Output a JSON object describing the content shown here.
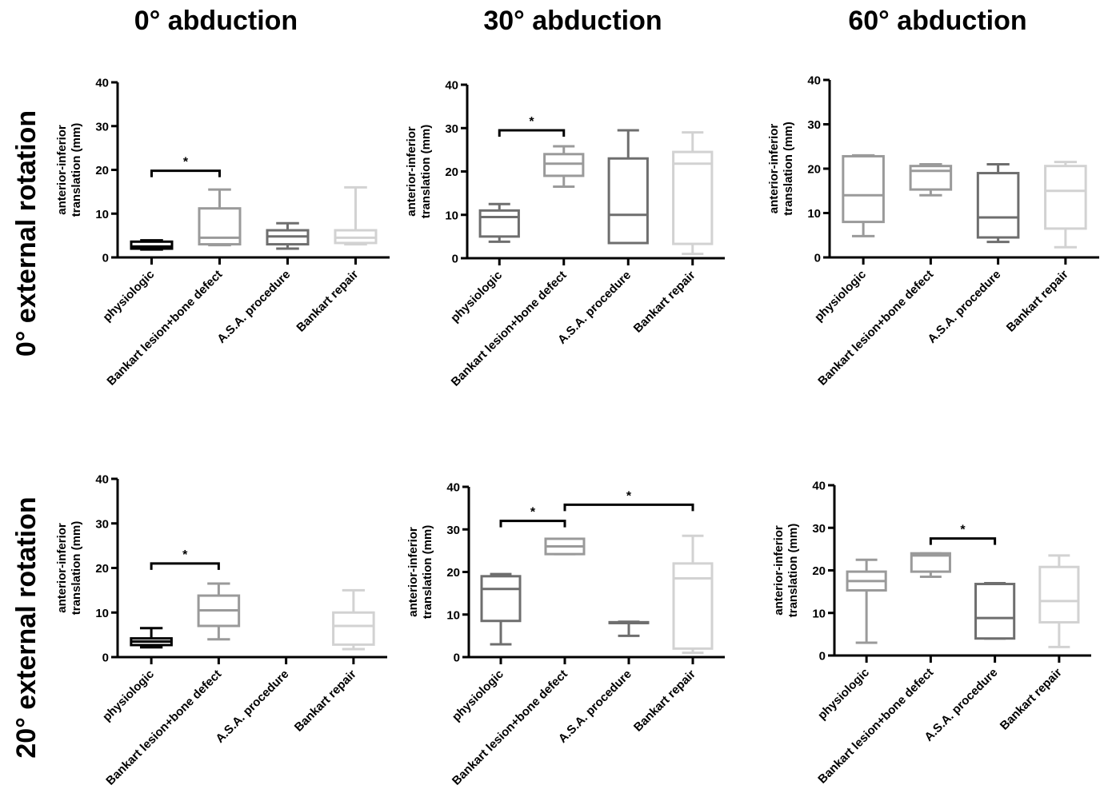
{
  "column_titles": [
    "0° abduction",
    "30° abduction",
    "60° abduction"
  ],
  "row_titles": [
    "0° external rotation",
    "20° external rotation"
  ],
  "colors": {
    "physiologic": "#000000",
    "bankart_bone": "#9a9a9a",
    "asa": "#6e6e6e",
    "bankart_repair": "#d2d2d2"
  },
  "chart_data": [
    {
      "type": "box",
      "row": 0,
      "col": 0,
      "title": "0° abduction",
      "ylabel": "anterior-inferior translation (mm)",
      "ylim": [
        0,
        40
      ],
      "yticks": [
        0,
        10,
        20,
        30,
        40
      ],
      "categories": [
        "physiologic",
        "Bankart lesion+bone defect",
        "A.S.A. procedure",
        "Bankart repair"
      ],
      "boxes": [
        {
          "min": 1.8,
          "q1": 2.0,
          "median": 2.5,
          "q3": 3.6,
          "max": 3.9,
          "color": "#000000"
        },
        {
          "min": 2.8,
          "q1": 3.0,
          "median": 4.5,
          "q3": 11.2,
          "max": 15.5,
          "color": "#9a9a9a"
        },
        {
          "min": 2.0,
          "q1": 3.0,
          "median": 4.8,
          "q3": 6.2,
          "max": 7.8,
          "color": "#6e6e6e"
        },
        {
          "min": 3.0,
          "q1": 3.3,
          "median": 4.5,
          "q3": 6.2,
          "max": 16.0,
          "color": "#d2d2d2"
        }
      ],
      "significance": [
        {
          "from": 0,
          "to": 1,
          "y": 19.8,
          "label": "*"
        }
      ]
    },
    {
      "type": "box",
      "row": 0,
      "col": 1,
      "title": "30° abduction",
      "ylabel": "anterior-inferior translation (mm)",
      "ylim": [
        0,
        40
      ],
      "yticks": [
        0,
        10,
        20,
        30,
        40
      ],
      "categories": [
        "physiologic",
        "Bankart lesion+bone defect",
        "A.S.A. procedure",
        "Bankart repair"
      ],
      "boxes": [
        {
          "min": 3.8,
          "q1": 5.0,
          "median": 9.5,
          "q3": 11.0,
          "max": 12.5,
          "color": "#6e6e6e"
        },
        {
          "min": 16.5,
          "q1": 19.0,
          "median": 21.8,
          "q3": 24.0,
          "max": 25.8,
          "color": "#9a9a9a"
        },
        {
          "min": 3.5,
          "q1": 3.5,
          "median": 10.0,
          "q3": 23.0,
          "max": 29.5,
          "color": "#6e6e6e"
        },
        {
          "min": 1.0,
          "q1": 3.3,
          "median": 21.8,
          "q3": 24.5,
          "max": 29.0,
          "color": "#d2d2d2"
        }
      ],
      "significance": [
        {
          "from": 0,
          "to": 1,
          "y": 29.5,
          "label": "*"
        }
      ]
    },
    {
      "type": "box",
      "row": 0,
      "col": 2,
      "title": "60° abduction",
      "ylabel": "anterior-inferior translation (mm)",
      "ylim": [
        0,
        40
      ],
      "yticks": [
        0,
        10,
        20,
        30,
        40
      ],
      "categories": [
        "physiologic",
        "Bankart lesion+bone defect",
        "A.S.A. procedure",
        "Bankart repair"
      ],
      "boxes": [
        {
          "min": 4.8,
          "q1": 8.0,
          "median": 14.0,
          "q3": 22.8,
          "max": 23.0,
          "color": "#9a9a9a"
        },
        {
          "min": 14.0,
          "q1": 15.3,
          "median": 19.5,
          "q3": 20.6,
          "max": 21.0,
          "color": "#9a9a9a"
        },
        {
          "min": 3.5,
          "q1": 4.5,
          "median": 9.0,
          "q3": 19.0,
          "max": 21.0,
          "color": "#6e6e6e"
        },
        {
          "min": 2.3,
          "q1": 6.5,
          "median": 15.0,
          "q3": 20.6,
          "max": 21.5,
          "color": "#d2d2d2"
        }
      ],
      "significance": []
    },
    {
      "type": "box",
      "row": 1,
      "col": 0,
      "title": "0° abduction",
      "ylabel": "anterior-inferior translation (mm)",
      "ylim": [
        0,
        40
      ],
      "yticks": [
        0,
        10,
        20,
        30,
        40
      ],
      "categories": [
        "physiologic",
        "Bankart lesion+bone defect",
        "A.S.A. procedure",
        "Bankart repair"
      ],
      "boxes": [
        {
          "min": 2.2,
          "q1": 2.7,
          "median": 3.5,
          "q3": 4.2,
          "max": 6.5,
          "color": "#000000"
        },
        {
          "min": 4.0,
          "q1": 7.0,
          "median": 10.5,
          "q3": 13.8,
          "max": 16.5,
          "color": "#9a9a9a"
        },
        null,
        {
          "min": 1.8,
          "q1": 2.8,
          "median": 7.0,
          "q3": 10.0,
          "max": 15.0,
          "color": "#d2d2d2"
        }
      ],
      "significance": [
        {
          "from": 0,
          "to": 1,
          "y": 21.0,
          "label": "*"
        }
      ]
    },
    {
      "type": "box",
      "row": 1,
      "col": 1,
      "title": "30° abduction",
      "ylabel": "anterior-inferior translation (mm)",
      "ylim": [
        0,
        40
      ],
      "yticks": [
        0,
        10,
        20,
        30,
        40
      ],
      "categories": [
        "physiologic",
        "Bankart lesion+bone defect",
        "A.S.A. procedure",
        "Bankart repair"
      ],
      "boxes": [
        {
          "min": 3.0,
          "q1": 8.5,
          "median": 16.0,
          "q3": 19.0,
          "max": 19.5,
          "color": "#6e6e6e"
        },
        {
          "min": 24.2,
          "q1": 24.2,
          "median": 26.0,
          "q3": 27.8,
          "max": 27.8,
          "color": "#9a9a9a"
        },
        {
          "min": 5.0,
          "q1": 8.0,
          "median": 8.0,
          "q3": 8.2,
          "max": 8.3,
          "color": "#6e6e6e"
        },
        {
          "min": 1.0,
          "q1": 2.0,
          "median": 18.5,
          "q3": 22.0,
          "max": 28.5,
          "color": "#d2d2d2"
        }
      ],
      "significance": [
        {
          "from": 0,
          "to": 1,
          "y": 32.0,
          "label": "*"
        },
        {
          "from": 1,
          "to": 3,
          "y": 35.8,
          "label": "*"
        }
      ]
    },
    {
      "type": "box",
      "row": 1,
      "col": 2,
      "title": "60° abduction",
      "ylabel": "anterior-inferior translation (mm)",
      "ylim": [
        0,
        40
      ],
      "yticks": [
        0,
        10,
        20,
        30,
        40
      ],
      "categories": [
        "physiologic",
        "Bankart lesion+bone defect",
        "A.S.A. procedure",
        "Bankart repair"
      ],
      "boxes": [
        {
          "min": 3.0,
          "q1": 15.3,
          "median": 17.5,
          "q3": 19.7,
          "max": 22.5,
          "color": "#9a9a9a"
        },
        {
          "min": 18.5,
          "q1": 19.7,
          "median": 23.5,
          "q3": 24.0,
          "max": 24.0,
          "color": "#9a9a9a"
        },
        {
          "min": 4.0,
          "q1": 4.0,
          "median": 8.8,
          "q3": 16.8,
          "max": 17.0,
          "color": "#6e6e6e"
        },
        {
          "min": 2.0,
          "q1": 7.8,
          "median": 12.8,
          "q3": 20.8,
          "max": 23.5,
          "color": "#d2d2d2"
        }
      ],
      "significance": [
        {
          "from": 1,
          "to": 2,
          "y": 27.5,
          "label": "*"
        }
      ]
    }
  ]
}
